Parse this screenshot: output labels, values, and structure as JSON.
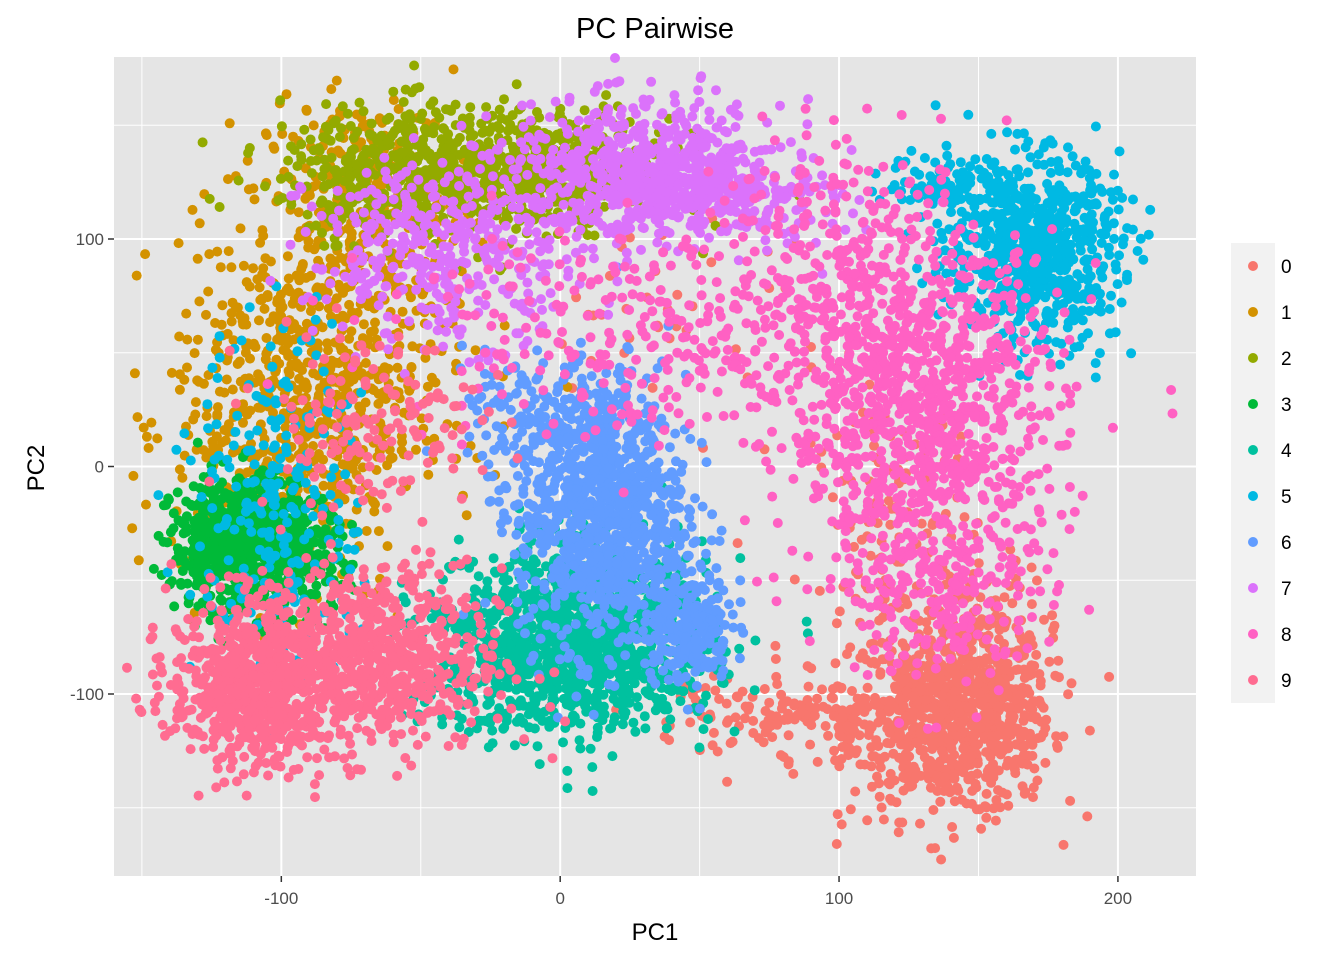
{
  "chart_data": {
    "type": "scatter",
    "title": "PC Pairwise",
    "xlabel": "PC1",
    "ylabel": "PC2",
    "xlim": [
      -160,
      228
    ],
    "ylim": [
      -180,
      180
    ],
    "x_ticks": [
      -100,
      0,
      100,
      200
    ],
    "y_ticks": [
      -100,
      0,
      100
    ],
    "x_tick_labels": [
      "-100",
      "0",
      "100",
      "200"
    ],
    "y_tick_labels": [
      "-100",
      "0",
      "100"
    ],
    "grid": true,
    "panel_background": "#e5e5e5",
    "legend_position": "right",
    "series": [
      {
        "name": "0",
        "color": "#F8766D",
        "clusters": [
          {
            "cx": 140,
            "cy": -110,
            "sx": 18,
            "sy": 22,
            "n": 700
          },
          {
            "cx": 155,
            "cy": -95,
            "sx": 10,
            "sy": 25,
            "n": 200
          },
          {
            "cx": 95,
            "cy": -110,
            "sx": 25,
            "sy": 8,
            "n": 150
          },
          {
            "cx": 120,
            "cy": -40,
            "sx": 15,
            "sy": 40,
            "n": 150
          },
          {
            "cx": 60,
            "cy": -110,
            "sx": 15,
            "sy": 12,
            "n": 30
          },
          {
            "cx": 40,
            "cy": 70,
            "sx": 30,
            "sy": 25,
            "n": 40
          }
        ]
      },
      {
        "name": "1",
        "color": "#D39200",
        "clusters": [
          {
            "cx": -95,
            "cy": 20,
            "sx": 22,
            "sy": 40,
            "n": 600
          },
          {
            "cx": -70,
            "cy": 120,
            "sx": 20,
            "sy": 20,
            "n": 300
          },
          {
            "cx": -80,
            "cy": 60,
            "sx": 25,
            "sy": 25,
            "n": 200
          }
        ]
      },
      {
        "name": "2",
        "color": "#93AA00",
        "clusters": [
          {
            "cx": -40,
            "cy": 130,
            "sx": 30,
            "sy": 14,
            "n": 700
          },
          {
            "cx": 0,
            "cy": 130,
            "sx": 20,
            "sy": 12,
            "n": 300
          }
        ]
      },
      {
        "name": "3",
        "color": "#00BA38",
        "clusters": [
          {
            "cx": -115,
            "cy": -35,
            "sx": 12,
            "sy": 15,
            "n": 700
          },
          {
            "cx": -95,
            "cy": -40,
            "sx": 10,
            "sy": 12,
            "n": 150
          }
        ]
      },
      {
        "name": "4",
        "color": "#00C19F",
        "clusters": [
          {
            "cx": 10,
            "cy": -75,
            "sx": 22,
            "sy": 20,
            "n": 1200
          },
          {
            "cx": -30,
            "cy": -85,
            "sx": 15,
            "sy": 18,
            "n": 150
          }
        ]
      },
      {
        "name": "5",
        "color": "#00B9E3",
        "clusters": [
          {
            "cx": 170,
            "cy": 95,
            "sx": 15,
            "sy": 20,
            "n": 700
          },
          {
            "cx": 140,
            "cy": 125,
            "sx": 12,
            "sy": 6,
            "n": 100
          },
          {
            "cx": -100,
            "cy": -20,
            "sx": 15,
            "sy": 40,
            "n": 250
          }
        ]
      },
      {
        "name": "6",
        "color": "#619CFF",
        "clusters": [
          {
            "cx": 15,
            "cy": -20,
            "sx": 15,
            "sy": 30,
            "n": 1000
          },
          {
            "cx": 45,
            "cy": -70,
            "sx": 8,
            "sy": 12,
            "n": 250
          },
          {
            "cx": -5,
            "cy": 20,
            "sx": 15,
            "sy": 15,
            "n": 150
          }
        ]
      },
      {
        "name": "7",
        "color": "#DB72FB",
        "clusters": [
          {
            "cx": 30,
            "cy": 130,
            "sx": 25,
            "sy": 15,
            "n": 600
          },
          {
            "cx": -40,
            "cy": 95,
            "sx": 25,
            "sy": 20,
            "n": 400
          },
          {
            "cx": 60,
            "cy": 120,
            "sx": 20,
            "sy": 10,
            "n": 200
          }
        ]
      },
      {
        "name": "8",
        "color": "#FF61C3",
        "clusters": [
          {
            "cx": 130,
            "cy": 20,
            "sx": 25,
            "sy": 40,
            "n": 1000
          },
          {
            "cx": 100,
            "cy": 80,
            "sx": 25,
            "sy": 30,
            "n": 300
          },
          {
            "cx": 20,
            "cy": 60,
            "sx": 40,
            "sy": 25,
            "n": 250
          },
          {
            "cx": 140,
            "cy": -60,
            "sx": 15,
            "sy": 20,
            "n": 150
          }
        ]
      },
      {
        "name": "9",
        "color": "#FF6C91",
        "clusters": [
          {
            "cx": -110,
            "cy": -95,
            "sx": 15,
            "sy": 18,
            "n": 700
          },
          {
            "cx": -65,
            "cy": -85,
            "sx": 22,
            "sy": 20,
            "n": 700
          },
          {
            "cx": -70,
            "cy": 20,
            "sx": 20,
            "sy": 20,
            "n": 150
          }
        ]
      }
    ]
  }
}
